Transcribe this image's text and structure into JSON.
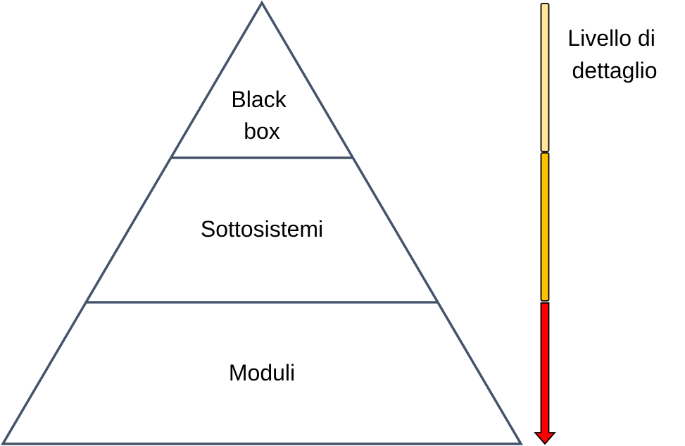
{
  "pyramid": {
    "levels": [
      {
        "label_lines": [
          "Black",
          "box"
        ]
      },
      {
        "label_lines": [
          "Sottosistemi"
        ]
      },
      {
        "label_lines": [
          "Moduli"
        ]
      }
    ],
    "outline_color": "#44546a"
  },
  "detail_scale": {
    "label_lines": [
      "Livello di",
      "dettaglio"
    ],
    "segments": [
      {
        "color": "#ffe699"
      },
      {
        "color": "#ffc000"
      },
      {
        "color": "#ff0000"
      }
    ],
    "direction": "down"
  }
}
